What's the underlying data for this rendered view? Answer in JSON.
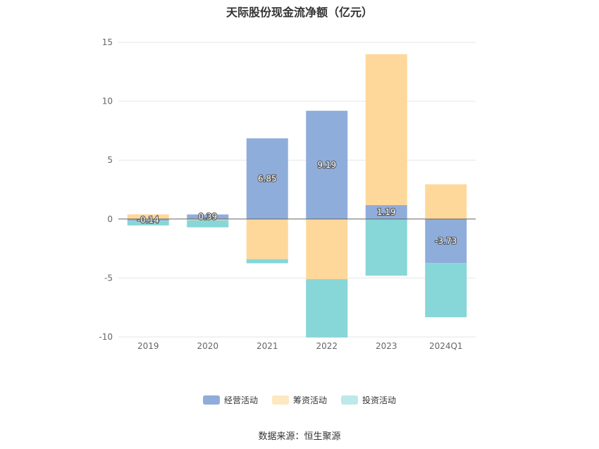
{
  "chart_data": {
    "type": "bar",
    "stacked": true,
    "title": "天际股份现金流净额（亿元）",
    "categories": [
      "2019",
      "2020",
      "2021",
      "2022",
      "2023",
      "2024Q1"
    ],
    "ylim": [
      -10,
      15
    ],
    "yticks": [
      15,
      10,
      5,
      0,
      -5,
      -10
    ],
    "grid": true,
    "legend_position": "bottom",
    "series": [
      {
        "name": "经营活动",
        "color": "#8fadda",
        "values": [
          -0.14,
          0.39,
          6.85,
          9.19,
          1.19,
          -3.73
        ],
        "labels": [
          "-0.14",
          "0.39",
          "6.85",
          "9.19",
          "1.19",
          "-3.73"
        ]
      },
      {
        "name": "筹资活动",
        "color": "#fed89a",
        "values": [
          0.4,
          -0.1,
          -3.4,
          -5.1,
          12.8,
          2.95
        ]
      },
      {
        "name": "投资活动",
        "color": "#87d6d8",
        "values": [
          -0.4,
          -0.6,
          -0.35,
          -4.95,
          -4.8,
          -4.6
        ]
      }
    ],
    "source": "数据来源：恒生聚源"
  }
}
